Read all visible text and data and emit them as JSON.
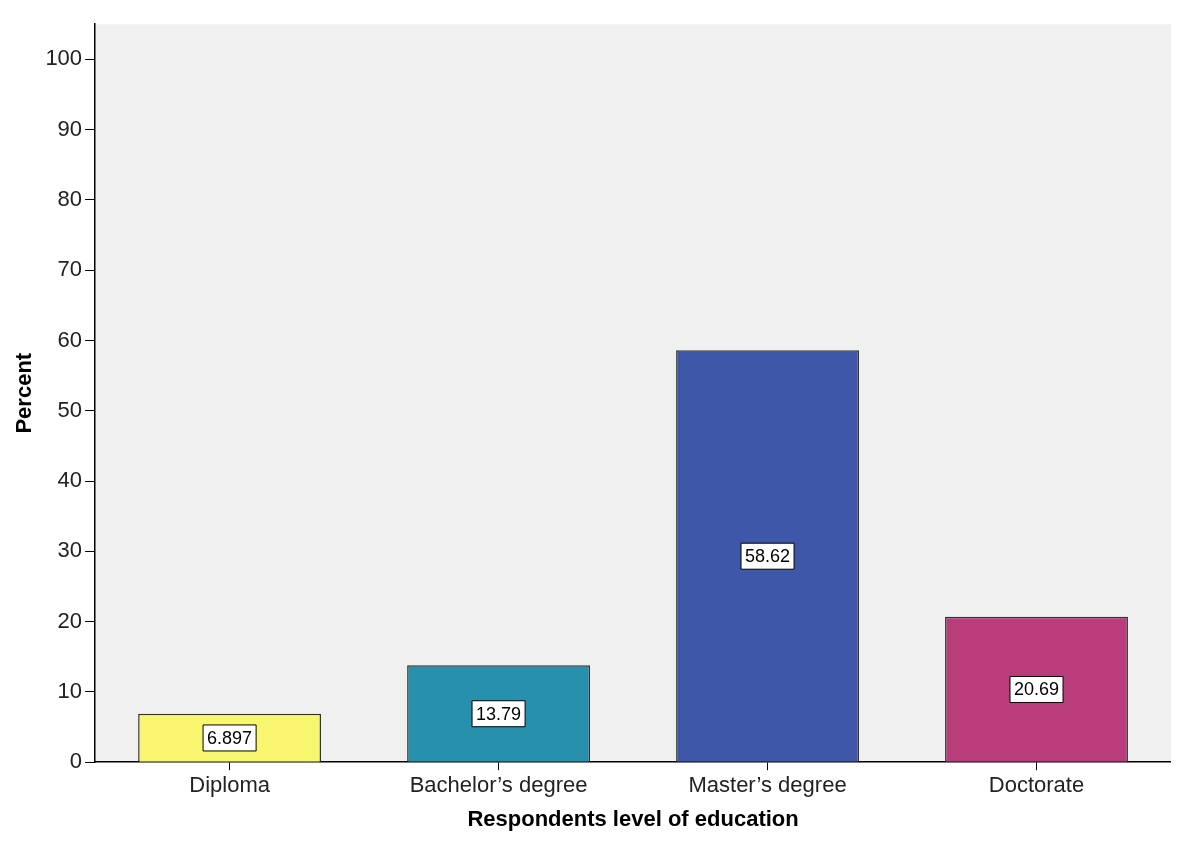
{
  "chart_data": {
    "type": "bar",
    "xlabel": "Respondents level of education",
    "ylabel": "Percent",
    "categories": [
      "Diploma",
      "Bachelor’s degree",
      "Master’s degree",
      "Doctorate"
    ],
    "values": [
      6.897,
      13.79,
      58.62,
      20.69
    ],
    "colors": [
      "#f8f56e",
      "#2790ac",
      "#3e57a8",
      "#b83d7a"
    ],
    "ylim": [
      0,
      105
    ],
    "yticks": [
      0,
      10,
      20,
      30,
      40,
      50,
      60,
      70,
      80,
      90,
      100
    ],
    "grid": false,
    "legend": false,
    "data_labels": true
  }
}
